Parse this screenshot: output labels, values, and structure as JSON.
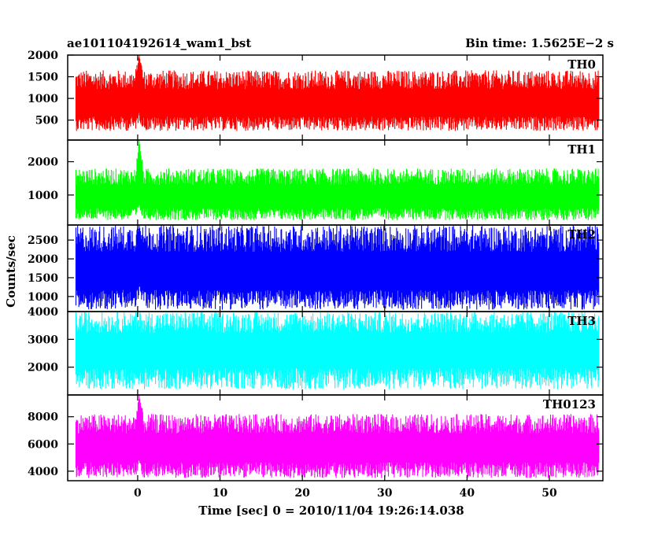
{
  "chart_data": {
    "type": "line",
    "title": "ae101104192614_wam1_bst",
    "bin_time": "Bin time: 1.5625E−2 s",
    "xlabel": "Time [sec] 0 = 2010/11/04 19:26:14.038",
    "ylabel": "Counts/sec",
    "xlim": [
      -8.5,
      56.5
    ],
    "x_data_range": [
      -7.5,
      56
    ],
    "x_ticks": [
      0,
      10,
      20,
      30,
      40,
      50
    ],
    "x_tick_labels": [
      "0",
      "10",
      "20",
      "30",
      "40",
      "50"
    ],
    "grid": false,
    "panels": [
      {
        "name": "TH0",
        "color": "#ff0000",
        "ylim": [
          40,
          2000
        ],
        "y_ticks": [
          500,
          1000,
          1500,
          2000
        ],
        "y_tick_labels": [
          "500",
          "1000",
          "1500",
          "2000"
        ],
        "baseline_mean": 850,
        "noise_low": 250,
        "noise_high": 1650,
        "burst": {
          "t": 0.2,
          "peak": 2000
        }
      },
      {
        "name": "TH1",
        "color": "#00ff00",
        "ylim": [
          100,
          2650
        ],
        "y_ticks": [
          1000,
          2000
        ],
        "y_tick_labels": [
          "1000",
          "2000"
        ],
        "baseline_mean": 900,
        "noise_low": 250,
        "noise_high": 1800,
        "burst": {
          "t": 0.2,
          "peak": 2650
        }
      },
      {
        "name": "TH2",
        "color": "#0000ff",
        "ylim": [
          600,
          2900
        ],
        "y_ticks": [
          1000,
          1500,
          2000,
          2500
        ],
        "y_tick_labels": [
          "1000",
          "1500",
          "2000",
          "2500"
        ],
        "baseline_mean": 1600,
        "noise_low": 650,
        "noise_high": 2900,
        "burst": {
          "t": 0.2,
          "peak": 2900
        }
      },
      {
        "name": "TH3",
        "color": "#00ffff",
        "ylim": [
          1000,
          4000
        ],
        "y_ticks": [
          2000,
          3000,
          4000
        ],
        "y_tick_labels": [
          "2000",
          "3000",
          "4000"
        ],
        "baseline_mean": 2600,
        "noise_low": 1200,
        "noise_high": 4000,
        "burst": null
      },
      {
        "name": "TH0123",
        "color": "#ff00ff",
        "ylim": [
          3300,
          9600
        ],
        "y_ticks": [
          4000,
          6000,
          8000
        ],
        "y_tick_labels": [
          "4000",
          "6000",
          "8000"
        ],
        "baseline_mean": 5600,
        "noise_low": 3500,
        "noise_high": 8200,
        "burst": {
          "t": 0.2,
          "peak": 9600
        }
      }
    ]
  }
}
